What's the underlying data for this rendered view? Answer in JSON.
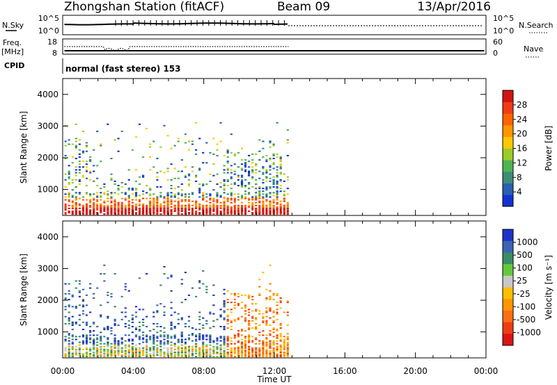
{
  "header": {
    "station": "Zhongshan Station (fitACF)",
    "beam": "Beam 09",
    "date": "13/Apr/2016"
  },
  "panels": {
    "nsky_label": "N.Sky",
    "nsearch_label": "N.Search",
    "nsky_ticks": [
      "10^5",
      "10^0"
    ],
    "nsearch_ticks": [
      "10^5",
      "10^0"
    ],
    "freq_label_1": "Freq.",
    "freq_label_2": "[MHz]",
    "freq_ticks": [
      "18",
      "8"
    ],
    "nave_label": "Nave",
    "nave_ticks": [
      "60",
      "0"
    ],
    "cpid_label": "CPID",
    "cpid_text": "normal (fast stereo) 153"
  },
  "chart_data": [
    {
      "type": "heatmap",
      "title": "",
      "xlabel": "Time UT",
      "ylabel": "Slant Range [km]",
      "xlim": [
        0,
        24
      ],
      "ylim": [
        180,
        4500
      ],
      "x_ticks": [
        "00:00",
        "04:00",
        "08:00",
        "12:00",
        "16:00",
        "20:00",
        "00:00"
      ],
      "y_ticks": [
        "1000",
        "2000",
        "3000",
        "4000"
      ],
      "colorbar": {
        "label": "Power [dB]",
        "ticks": [
          "4",
          "8",
          "12",
          "16",
          "20",
          "24",
          "28"
        ],
        "colors": [
          "#1432d2",
          "#2860b4",
          "#3c8c78",
          "#50b450",
          "#9ccc28",
          "#ffc800",
          "#ff9600",
          "#ff6400",
          "#f03c14",
          "#d21414"
        ]
      },
      "data_extent_hours": [
        0.1,
        12.8
      ]
    },
    {
      "type": "heatmap",
      "title": "",
      "xlabel": "Time UT",
      "ylabel": "Slant Range [km]",
      "xlim": [
        0,
        24
      ],
      "ylim": [
        180,
        4500
      ],
      "x_ticks": [
        "00:00",
        "04:00",
        "08:00",
        "12:00",
        "16:00",
        "20:00",
        "00:00"
      ],
      "y_ticks": [
        "1000",
        "2000",
        "3000",
        "4000"
      ],
      "colorbar": {
        "label": "Velocity [m s⁻¹]",
        "ticks": [
          "1000",
          "500",
          "100",
          "25",
          "-25",
          "-100",
          "-500",
          "-1000"
        ],
        "colors": [
          "#1e32c8",
          "#3c64b4",
          "#3c8c64",
          "#64c83c",
          "#c8c8c8",
          "#ffbe00",
          "#ff9600",
          "#ff6e14",
          "#f03c14",
          "#dc1414"
        ]
      },
      "data_extent_hours": [
        0.1,
        12.8
      ]
    }
  ]
}
